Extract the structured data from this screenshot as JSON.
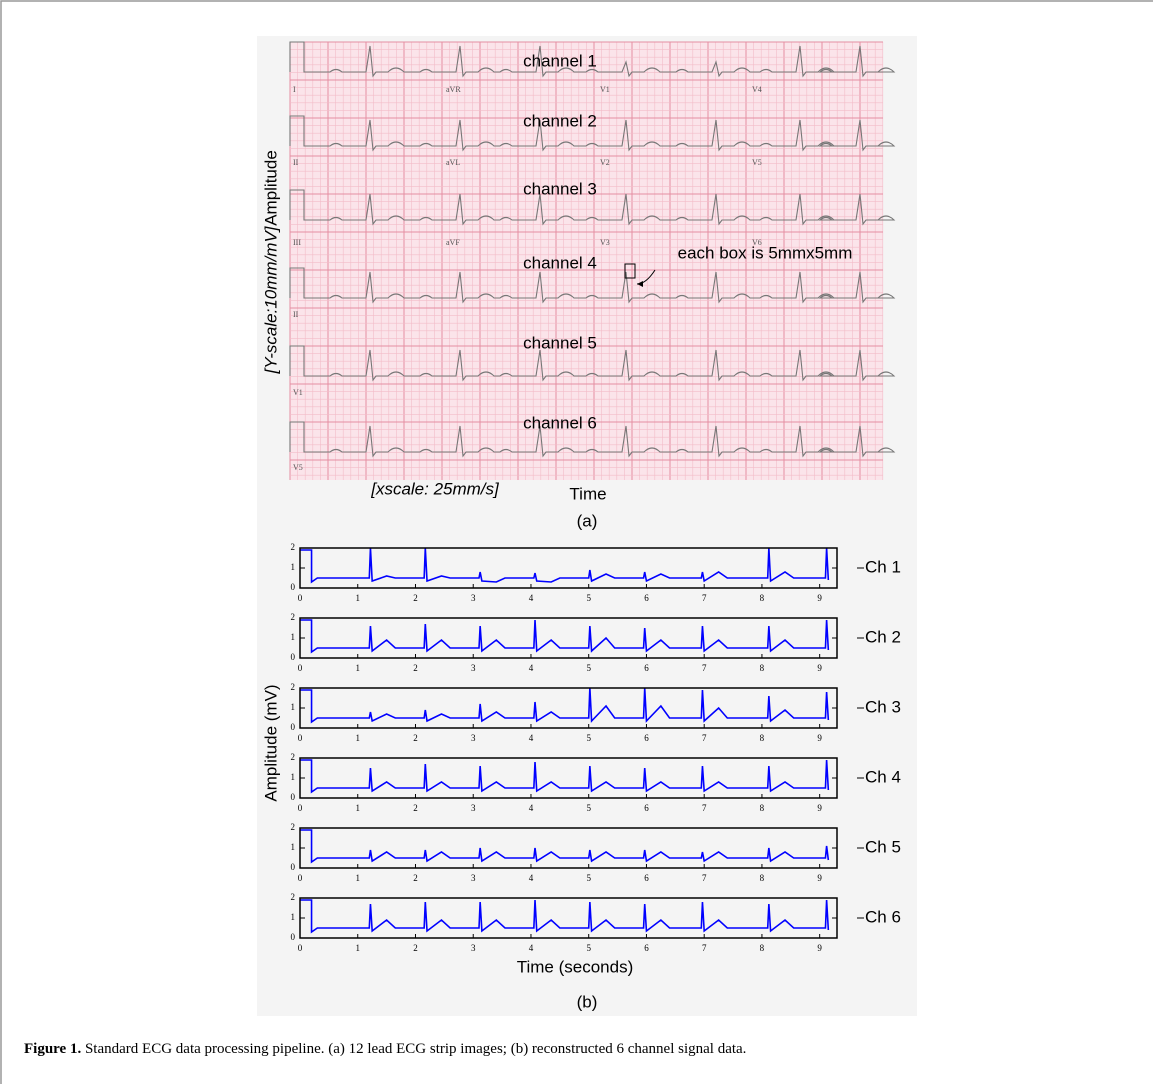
{
  "panel_a": {
    "channel_labels": [
      "channel 1",
      "channel 2",
      "channel 3",
      "channel 4",
      "channel 5",
      "channel 6"
    ],
    "lead_labels": [
      [
        "I",
        "aVR",
        "V1",
        "V4"
      ],
      [
        "II",
        "aVL",
        "V2",
        "V5"
      ],
      [
        "III",
        "aVF",
        "V3",
        "V6"
      ],
      [
        "II"
      ],
      [
        "V1"
      ],
      [
        "V5"
      ]
    ],
    "annotation": "each box is 5mmx5mm",
    "ylabel_scale": "[Y-scale:10mm/mV]",
    "ylabel": "Amplitude",
    "xlabel_scale": "[xscale: 25mm/s]",
    "xlabel": "Time",
    "panel_label": "(a)"
  },
  "chart_data": {
    "type": "line",
    "xlabel": "Time (seconds)",
    "ylabel": "Amplitude (mV)",
    "panel_label": "(b)",
    "xlim": [
      0,
      9.3
    ],
    "ylim": [
      0,
      2
    ],
    "xticks": [
      0,
      1,
      2,
      3,
      4,
      5,
      6,
      7,
      8,
      9
    ],
    "yticks": [
      0,
      1,
      2
    ],
    "x": [
      0,
      0.2,
      0.2,
      0.3,
      1.2,
      1.22,
      1.25,
      1.5,
      1.65,
      2.15,
      2.17,
      2.2,
      2.45,
      2.6,
      3.1,
      3.12,
      3.15,
      3.4,
      3.55,
      4.05,
      4.07,
      4.1,
      4.35,
      4.5,
      5.0,
      5.02,
      5.05,
      5.3,
      5.45,
      5.95,
      5.97,
      6.0,
      6.25,
      6.4,
      6.95,
      6.97,
      7.0,
      7.25,
      7.4,
      8.1,
      8.12,
      8.15,
      8.4,
      8.55,
      9.1,
      9.12,
      9.15
    ],
    "series": [
      {
        "name": "Ch 1",
        "color": "#0000ff",
        "values": [
          1.9,
          1.9,
          0.3,
          0.5,
          0.5,
          2.0,
          0.35,
          0.6,
          0.5,
          0.5,
          2.0,
          0.35,
          0.6,
          0.5,
          0.5,
          0.8,
          0.35,
          0.3,
          0.5,
          0.5,
          0.75,
          0.35,
          0.3,
          0.5,
          0.5,
          0.9,
          0.35,
          0.7,
          0.5,
          0.5,
          0.8,
          0.35,
          0.7,
          0.5,
          0.5,
          0.8,
          0.35,
          0.8,
          0.5,
          0.5,
          2.0,
          0.35,
          0.8,
          0.5,
          0.5,
          2.0,
          0.4
        ]
      },
      {
        "name": "Ch 2",
        "color": "#0000ff",
        "values": [
          1.9,
          1.9,
          0.3,
          0.5,
          0.5,
          1.6,
          0.35,
          0.9,
          0.5,
          0.5,
          1.7,
          0.35,
          0.9,
          0.5,
          0.5,
          1.6,
          0.35,
          0.9,
          0.5,
          0.5,
          1.9,
          0.35,
          0.9,
          0.5,
          0.5,
          1.6,
          0.35,
          1.0,
          0.5,
          0.5,
          1.5,
          0.35,
          0.9,
          0.5,
          0.5,
          1.6,
          0.35,
          0.9,
          0.5,
          0.5,
          1.6,
          0.35,
          0.9,
          0.5,
          0.5,
          1.9,
          0.4
        ]
      },
      {
        "name": "Ch 3",
        "color": "#0000ff",
        "values": [
          1.9,
          1.9,
          0.3,
          0.5,
          0.5,
          0.8,
          0.35,
          0.7,
          0.5,
          0.5,
          0.9,
          0.35,
          0.7,
          0.5,
          0.5,
          1.2,
          0.35,
          0.8,
          0.5,
          0.5,
          1.3,
          0.35,
          0.8,
          0.5,
          0.5,
          2.0,
          0.35,
          1.1,
          0.5,
          0.5,
          2.0,
          0.35,
          1.1,
          0.5,
          0.5,
          1.9,
          0.35,
          1.0,
          0.5,
          0.5,
          1.6,
          0.35,
          0.9,
          0.5,
          0.5,
          1.8,
          0.4
        ]
      },
      {
        "name": "Ch 4",
        "color": "#0000ff",
        "values": [
          1.9,
          1.9,
          0.3,
          0.5,
          0.5,
          1.5,
          0.35,
          0.8,
          0.5,
          0.5,
          1.7,
          0.35,
          0.8,
          0.5,
          0.5,
          1.6,
          0.35,
          0.8,
          0.5,
          0.5,
          1.8,
          0.35,
          0.8,
          0.5,
          0.5,
          1.6,
          0.35,
          0.8,
          0.5,
          0.5,
          1.5,
          0.35,
          0.8,
          0.5,
          0.5,
          1.6,
          0.35,
          0.8,
          0.5,
          0.5,
          1.6,
          0.35,
          0.8,
          0.5,
          0.5,
          1.9,
          0.4
        ]
      },
      {
        "name": "Ch 5",
        "color": "#0000ff",
        "values": [
          1.9,
          1.9,
          0.3,
          0.5,
          0.5,
          0.9,
          0.35,
          0.8,
          0.5,
          0.5,
          0.9,
          0.35,
          0.8,
          0.5,
          0.5,
          1.0,
          0.35,
          0.8,
          0.5,
          0.5,
          1.0,
          0.35,
          0.8,
          0.5,
          0.5,
          0.9,
          0.35,
          0.8,
          0.5,
          0.5,
          0.9,
          0.35,
          0.8,
          0.5,
          0.5,
          0.8,
          0.35,
          0.8,
          0.5,
          0.5,
          1.0,
          0.35,
          0.8,
          0.5,
          0.5,
          1.1,
          0.4
        ]
      },
      {
        "name": "Ch 6",
        "color": "#0000ff",
        "values": [
          1.9,
          1.9,
          0.3,
          0.5,
          0.5,
          1.7,
          0.35,
          0.9,
          0.5,
          0.5,
          1.8,
          0.35,
          0.9,
          0.5,
          0.5,
          1.8,
          0.35,
          0.9,
          0.5,
          0.5,
          1.9,
          0.35,
          0.9,
          0.5,
          0.5,
          1.8,
          0.35,
          0.9,
          0.5,
          0.5,
          1.7,
          0.35,
          0.9,
          0.5,
          0.5,
          1.8,
          0.35,
          0.9,
          0.5,
          0.5,
          1.7,
          0.35,
          0.9,
          0.5,
          0.5,
          1.9,
          0.4
        ]
      }
    ]
  },
  "caption": {
    "label": "Figure 1.",
    "text": "Standard ECG data processing pipeline. (a) 12 lead ECG strip images; (b) reconstructed 6 channel signal data."
  }
}
